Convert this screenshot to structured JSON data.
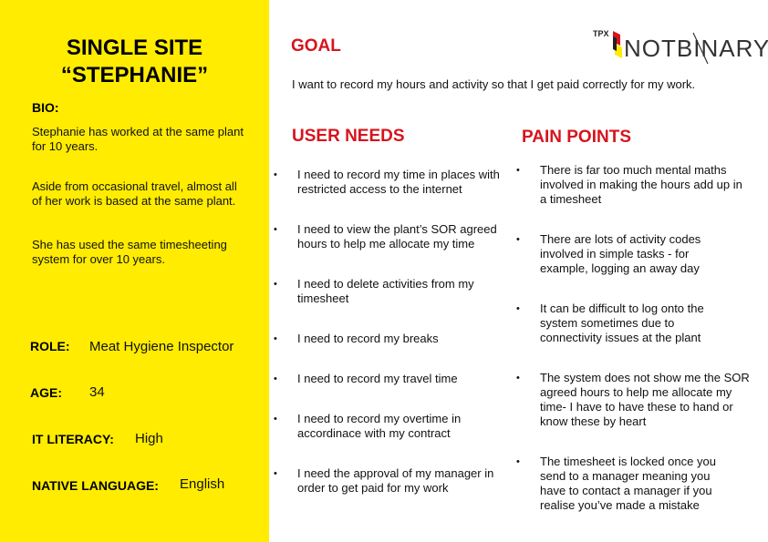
{
  "persona": {
    "title_line1": "SINGLE SITE",
    "title_line2": "“STEPHANIE”",
    "bio_label": "BIO:",
    "bio": [
      "Stephanie has worked at the same plant for 10 years.",
      "Aside from occasional travel, almost all of her work is based at the same plant.",
      "She has used the same timesheeting system for over 10 years."
    ],
    "role_label": "ROLE:",
    "role": "Meat Hygiene Inspector",
    "age_label": "AGE:",
    "age": "34",
    "literacy_label": "IT LITERACY:",
    "literacy": "High",
    "language_label": "NATIVE LANGUAGE:",
    "language": "English"
  },
  "goal": {
    "heading": "GOAL",
    "text": "I want to record my hours and activity so that I get paid correctly for my work."
  },
  "user_needs": {
    "heading": "USER NEEDS",
    "items": [
      "I need to record my time in places with restricted access to the internet",
      "I need to view the plant’s SOR agreed hours to help me allocate my time",
      "I need to delete activities from my timesheet",
      "I need to record my breaks",
      "I need to record my travel time",
      "I need to record my overtime in accordinace with my contract",
      "I need the approval of my manager in order to get paid for my work"
    ]
  },
  "pain_points": {
    "heading": "PAIN POINTS",
    "items": [
      "There is far too much mental maths involved in making the hours add up in a timesheet",
      "There are lots of activity codes involved in simple tasks - for example, logging an away day",
      "It can be difficult to log onto the system sometimes due to connectivity issues at the plant",
      "The system does not show me the SOR agreed hours to help me allocate my time- I have to have these to hand or know these by heart",
      "The timesheet is locked once you send to a manager meaning you have to contact a manager if you realise you’ve made a mistake"
    ]
  },
  "logo": {
    "small": "TPX",
    "name": "NOTBINARY",
    "colors": {
      "red": "#d7141e",
      "yellow": "#ffec00",
      "dark": "#333333"
    }
  },
  "colors": {
    "accent_red": "#d7141e",
    "panel_yellow": "#ffec00"
  },
  "bullet": "•"
}
